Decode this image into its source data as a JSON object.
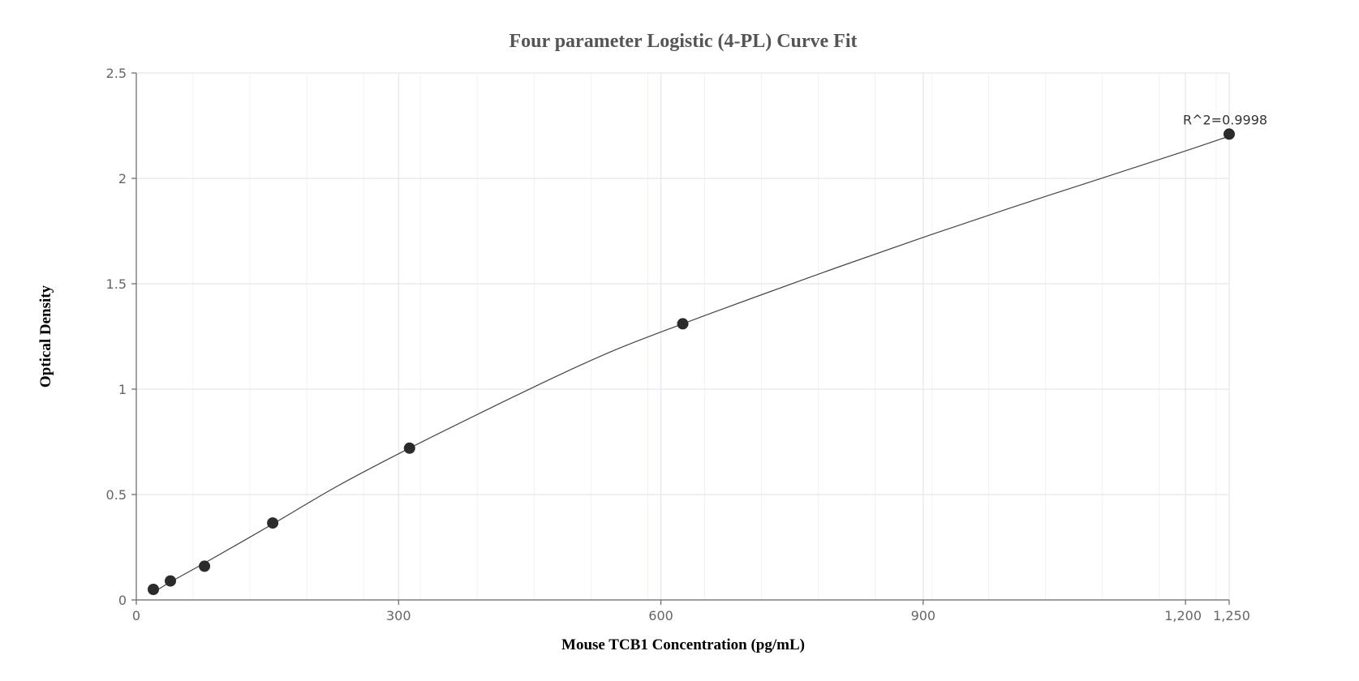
{
  "chart_data": {
    "type": "scatter",
    "title": "Four parameter Logistic (4-PL) Curve Fit",
    "xlabel": "Mouse TCB1 Concentration (pg/mL)",
    "ylabel": "Optical Density",
    "xlim": [
      0,
      1250
    ],
    "ylim": [
      0,
      2.5
    ],
    "x_ticks": [
      0,
      300,
      600,
      900,
      1200,
      1250
    ],
    "x_tick_labels": [
      "0",
      "300",
      "600",
      "900",
      "1,200",
      "1,250"
    ],
    "y_ticks": [
      0,
      0.5,
      1,
      1.5,
      2,
      2.5
    ],
    "y_tick_labels": [
      "0",
      "0.5",
      "1",
      "1.5",
      "2",
      "2.5"
    ],
    "grid": true,
    "points": {
      "x": [
        19.5,
        39,
        78,
        156,
        312.5,
        625,
        1250
      ],
      "y": [
        0.05,
        0.09,
        0.16,
        0.365,
        0.72,
        1.31,
        2.21
      ]
    },
    "fit_curve": {
      "model": "4PL",
      "x": [
        19.5,
        39,
        78,
        156,
        230,
        312.5,
        400,
        480,
        550,
        625,
        700,
        800,
        900,
        1000,
        1100,
        1200,
        1250
      ],
      "y": [
        0.035,
        0.085,
        0.175,
        0.36,
        0.54,
        0.72,
        0.9,
        1.06,
        1.19,
        1.31,
        1.425,
        1.575,
        1.72,
        1.86,
        1.995,
        2.13,
        2.2
      ]
    },
    "annotation": "R^2=0.9998"
  }
}
